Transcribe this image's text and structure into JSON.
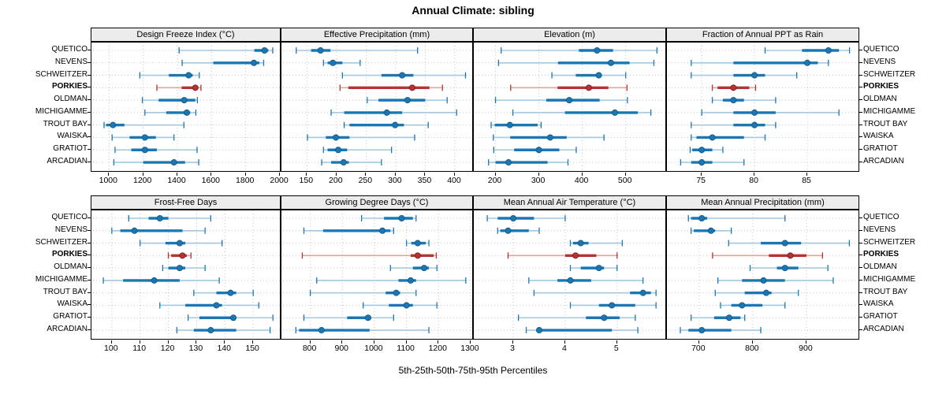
{
  "title": "Annual Climate: sibling",
  "caption": "5th-25th-50th-75th-95th Percentiles",
  "percentile_labels": [
    "5th",
    "25th",
    "50th",
    "75th",
    "95th"
  ],
  "highlight_site": "PORKIES",
  "colors": {
    "series": "#1b77b4",
    "series_light": "#a3c8e0",
    "series_dark": "#11557e",
    "highlight": "#b53331",
    "highlight_light": "#dfa3a2",
    "highlight_dark": "#7a1917",
    "strip_bg": "#ececec",
    "grid": "#c4c4c4",
    "border": "#000000"
  },
  "chart_data": {
    "type": "dotplot-percentile-trellis",
    "layout": "2 rows x 4 cols",
    "grid": "dotted",
    "sites": [
      "QUETICO",
      "NEVENS",
      "SCHWEITZER",
      "PORKIES",
      "OLDMAN",
      "MICHIGAMME",
      "TROUT BAY",
      "WAISKA",
      "GRATIOT",
      "ARCADIAN"
    ],
    "panels": [
      {
        "title": "Design Freeze Index (°C)",
        "xlim": [
          897,
          2009
        ],
        "ticks": [
          1000,
          1200,
          1400,
          1600,
          1800,
          2000
        ],
        "series": [
          [
            1410,
            1850,
            1910,
            1932,
            1958
          ],
          [
            1428,
            1610,
            1848,
            1880,
            1905
          ],
          [
            1180,
            1350,
            1466,
            1490,
            1528
          ],
          [
            1280,
            1425,
            1505,
            1520,
            1538
          ],
          [
            1195,
            1290,
            1440,
            1505,
            1517
          ],
          [
            1210,
            1335,
            1455,
            1475,
            1508
          ],
          [
            971,
            983,
            1023,
            1090,
            1438
          ],
          [
            1018,
            1120,
            1210,
            1274,
            1380
          ],
          [
            1035,
            1130,
            1210,
            1280,
            1515
          ],
          [
            1028,
            1200,
            1380,
            1445,
            1525
          ]
        ]
      },
      {
        "title": "Effective Precipitation (mm)",
        "xlim": [
          107,
          432
        ],
        "ticks": [
          150,
          200,
          250,
          300,
          350,
          400
        ],
        "series": [
          [
            132,
            157,
            173,
            190,
            337
          ],
          [
            178,
            185,
            194,
            210,
            240
          ],
          [
            210,
            276,
            311,
            330,
            418
          ],
          [
            206,
            220,
            328,
            357,
            379
          ],
          [
            252,
            271,
            320,
            350,
            387
          ],
          [
            191,
            213,
            285,
            311,
            403
          ],
          [
            213,
            222,
            299,
            314,
            355
          ],
          [
            151,
            182,
            199,
            222,
            332
          ],
          [
            178,
            185,
            203,
            218,
            293
          ],
          [
            175,
            191,
            212,
            221,
            276
          ]
        ]
      },
      {
        "title": "Elevation (m)",
        "xlim": [
          150,
          595
        ],
        "ticks": [
          200,
          300,
          400,
          500
        ],
        "series": [
          [
            213,
            392,
            434,
            471,
            572
          ],
          [
            207,
            344,
            466,
            509,
            565
          ],
          [
            330,
            385,
            438,
            445,
            500
          ],
          [
            235,
            343,
            415,
            460,
            503
          ],
          [
            200,
            317,
            370,
            440,
            504
          ],
          [
            240,
            360,
            475,
            528,
            558
          ],
          [
            190,
            198,
            233,
            297,
            305
          ],
          [
            195,
            234,
            326,
            364,
            450
          ],
          [
            196,
            243,
            300,
            347,
            386
          ],
          [
            184,
            200,
            230,
            320,
            367
          ]
        ]
      },
      {
        "title": "Fraction of Annual PPT as Rain",
        "xlim": [
          71.7,
          90
        ],
        "ticks": [
          75,
          80,
          85
        ],
        "series": [
          [
            81,
            84.5,
            87,
            88,
            89
          ],
          [
            74,
            78,
            85,
            86,
            87
          ],
          [
            74,
            78,
            80,
            81,
            84
          ],
          [
            76,
            76.5,
            78,
            79.5,
            80.1
          ],
          [
            76,
            77,
            78,
            79,
            82
          ],
          [
            75,
            78,
            80,
            82,
            88
          ],
          [
            74,
            78,
            80,
            81,
            82
          ],
          [
            74,
            74.5,
            76,
            79,
            81
          ],
          [
            73.9,
            74.1,
            75,
            76,
            77
          ],
          [
            73,
            74,
            75,
            76,
            79
          ]
        ]
      },
      {
        "title": "Frost-Free Days",
        "xlim": [
          92.8,
          160
        ],
        "ticks": [
          100,
          110,
          120,
          130,
          140,
          150
        ],
        "series": [
          [
            106,
            113,
            117,
            120,
            135
          ],
          [
            100,
            103,
            108,
            125,
            133
          ],
          [
            110,
            119,
            124,
            126,
            139
          ],
          [
            120,
            121,
            125,
            126.5,
            128
          ],
          [
            118,
            120,
            124,
            126,
            133
          ],
          [
            97,
            104,
            115,
            124,
            138
          ],
          [
            129,
            137,
            142,
            144,
            150
          ],
          [
            117,
            126,
            137,
            139,
            152
          ],
          [
            127,
            131,
            143,
            144,
            157
          ],
          [
            123,
            129,
            135,
            144,
            156
          ]
        ]
      },
      {
        "title": "Growing Degree Days (°C)",
        "xlim": [
          710,
          1310
        ],
        "ticks": [
          800,
          900,
          1000,
          1100,
          1200,
          1300
        ],
        "series": [
          [
            960,
            1030,
            1085,
            1120,
            1130
          ],
          [
            780,
            840,
            1025,
            1050,
            1060
          ],
          [
            1100,
            1115,
            1135,
            1160,
            1170
          ],
          [
            775,
            1113,
            1135,
            1185,
            1193
          ],
          [
            1050,
            1120,
            1155,
            1170,
            1195
          ],
          [
            820,
            1075,
            1113,
            1130,
            1285
          ],
          [
            800,
            1035,
            1068,
            1080,
            1130
          ],
          [
            965,
            1045,
            1100,
            1120,
            1195
          ],
          [
            780,
            915,
            980,
            990,
            1060
          ],
          [
            755,
            765,
            835,
            985,
            1170
          ]
        ]
      },
      {
        "title": "Mean Annual Air Temperature (°C)",
        "xlim": [
          2.24,
          5.96
        ],
        "ticks": [
          3,
          4,
          5
        ],
        "series": [
          [
            2.5,
            2.7,
            3.0,
            3.4,
            4.0
          ],
          [
            2.7,
            2.75,
            2.9,
            3.3,
            3.5
          ],
          [
            4.1,
            4.15,
            4.3,
            4.45,
            5.1
          ],
          [
            2.9,
            4.0,
            4.2,
            4.6,
            5.0
          ],
          [
            4.1,
            4.3,
            4.65,
            4.75,
            5.0
          ],
          [
            3.3,
            3.85,
            4.1,
            4.5,
            5.5
          ],
          [
            3.4,
            5.25,
            5.5,
            5.65,
            5.75
          ],
          [
            4.1,
            4.65,
            4.9,
            5.35,
            5.75
          ],
          [
            3.1,
            4.4,
            4.75,
            5.05,
            5.35
          ],
          [
            3.25,
            3.45,
            3.5,
            4.9,
            5.4
          ]
        ]
      },
      {
        "title": "Mean Annual Precipitation (mm)",
        "xlim": [
          640,
          1000
        ],
        "ticks": [
          700,
          800,
          900
        ],
        "series": [
          [
            680,
            685,
            705,
            715,
            860
          ],
          [
            685,
            690,
            722,
            730,
            760
          ],
          [
            755,
            815,
            860,
            890,
            980
          ],
          [
            725,
            830,
            870,
            900,
            930
          ],
          [
            795,
            845,
            860,
            885,
            940
          ],
          [
            735,
            780,
            820,
            860,
            950
          ],
          [
            730,
            785,
            825,
            835,
            885
          ],
          [
            740,
            760,
            780,
            818,
            860
          ],
          [
            685,
            728,
            756,
            777,
            785
          ],
          [
            665,
            680,
            705,
            760,
            815
          ]
        ]
      }
    ]
  }
}
